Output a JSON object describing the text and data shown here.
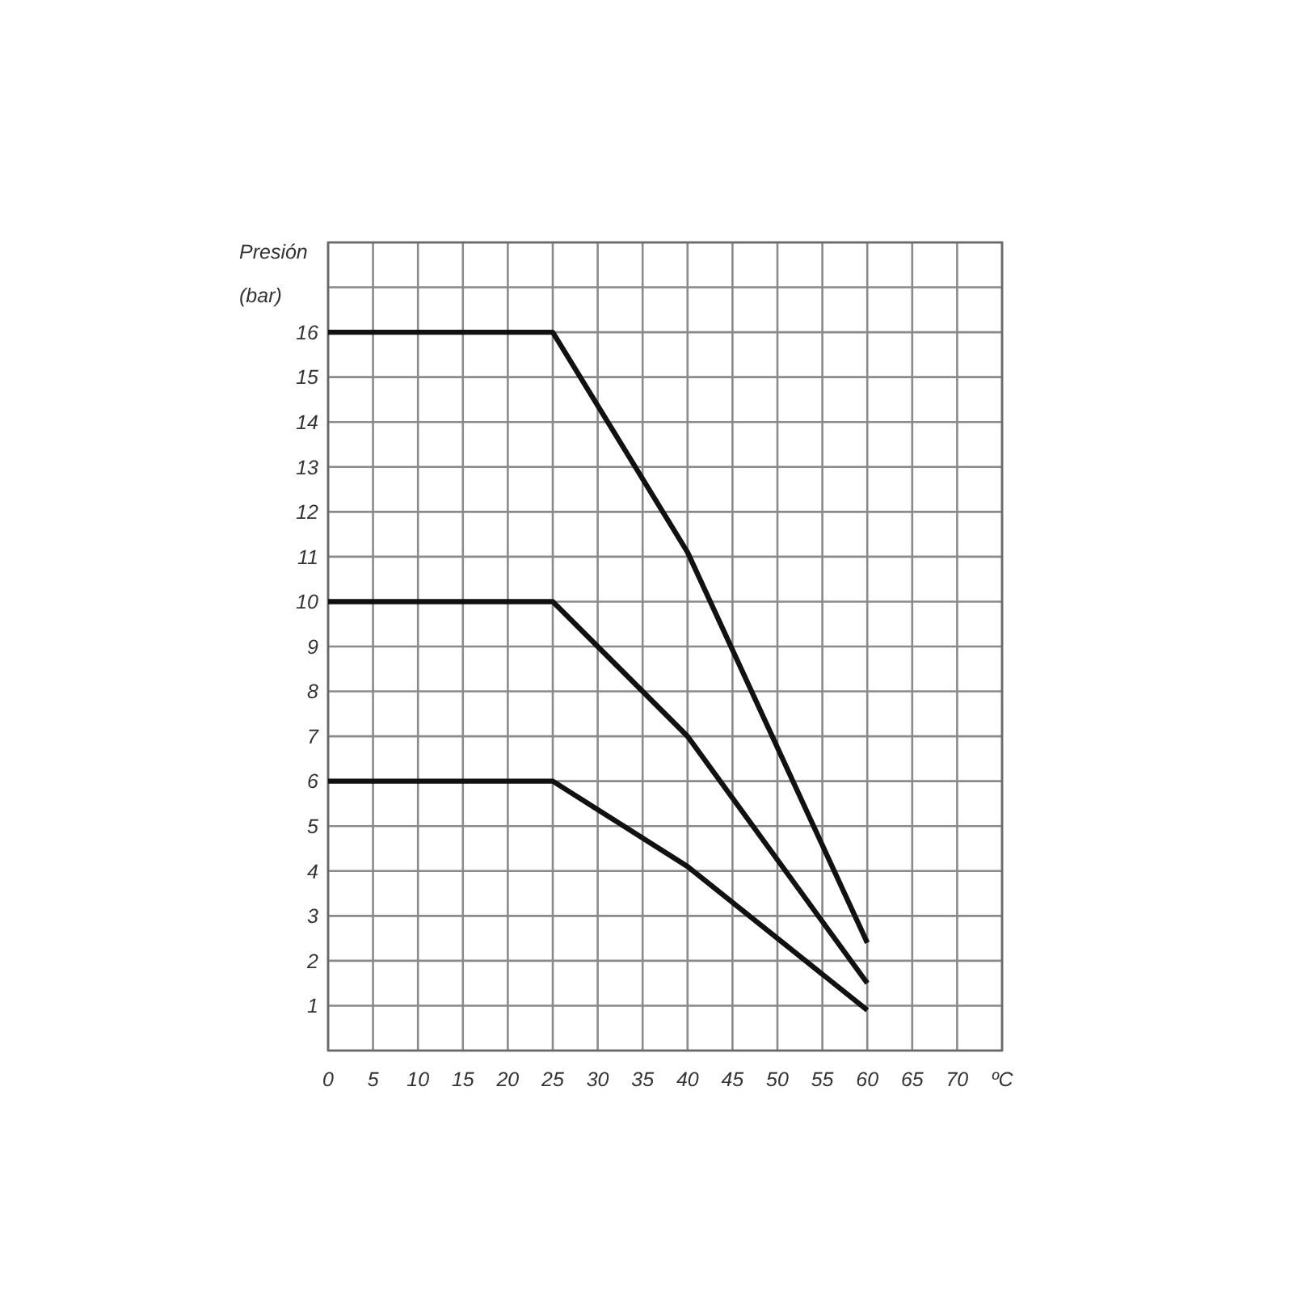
{
  "chart_data": {
    "type": "line",
    "xlabel": "ºC",
    "ylabel": "Presión\n(bar)",
    "x": [
      0,
      25,
      40,
      60
    ],
    "series": [
      {
        "color": "#111111",
        "values": [
          16,
          16,
          11.1,
          2.4
        ]
      },
      {
        "color": "#111111",
        "values": [
          10,
          10,
          7,
          1.5
        ]
      },
      {
        "color": "#111111",
        "values": [
          6,
          6,
          4.1,
          0.9
        ]
      }
    ],
    "xlim": [
      0,
      75
    ],
    "xticks": [
      0,
      5,
      10,
      15,
      20,
      25,
      30,
      35,
      40,
      45,
      50,
      55,
      60,
      65,
      70,
      {
        "value": 75,
        "label": null
      }
    ],
    "ylim": [
      0,
      18
    ],
    "yticks": [
      {
        "value": 0,
        "label": null
      },
      1,
      2,
      3,
      4,
      5,
      6,
      7,
      8,
      9,
      10,
      11,
      12,
      13,
      14,
      15,
      16,
      {
        "value": 17,
        "label": null
      },
      {
        "value": 18,
        "label": null
      }
    ],
    "grid": true,
    "marker": "none",
    "line_style": "solid"
  }
}
